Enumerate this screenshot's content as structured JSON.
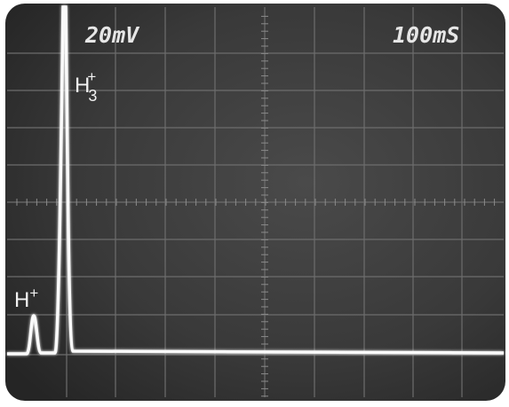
{
  "screen": {
    "volts_per_div": "20mV",
    "time_per_div": "100mS"
  },
  "peaks": [
    {
      "base": "H",
      "sub": "3",
      "sup": "+"
    },
    {
      "base": "H",
      "sup": "+"
    }
  ]
}
